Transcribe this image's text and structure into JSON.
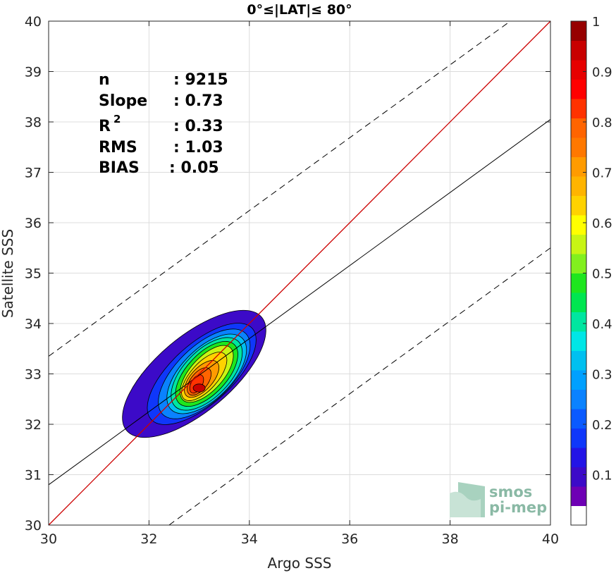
{
  "chart_data": {
    "type": "scatter",
    "title": "0°≤|LAT|≤ 80°",
    "xlabel": "Argo SSS",
    "ylabel": "Satellite SSS",
    "xlim": [
      30,
      40
    ],
    "ylim": [
      30,
      40
    ],
    "xticks": [
      "30",
      "32",
      "34",
      "36",
      "38",
      "40"
    ],
    "yticks": [
      "30",
      "31",
      "32",
      "33",
      "34",
      "35",
      "36",
      "37",
      "38",
      "39",
      "40"
    ],
    "grid": true,
    "stats": [
      {
        "label": "n",
        "value": ": 9215"
      },
      {
        "label": "Slope",
        "value": ": 0.73"
      },
      {
        "label": "R",
        "sup": "2",
        "value": ": 0.33"
      },
      {
        "label": "RMS",
        "value": ": 1.03"
      },
      {
        "label": "BIAS",
        "value": ": 0.05"
      }
    ],
    "identity_line": {
      "from": [
        30,
        30
      ],
      "to": [
        40,
        40
      ],
      "color": "#cc0000"
    },
    "regression_line": {
      "from": [
        30,
        30.8
      ],
      "to": [
        40,
        38.05
      ]
    },
    "dashed_lines": [
      {
        "from": [
          30,
          33.35
        ],
        "to": [
          39.2,
          40
        ]
      },
      {
        "from": [
          32.4,
          30
        ],
        "to": [
          40,
          35.5
        ]
      }
    ],
    "density_levels": [
      {
        "level": 0.05,
        "color": "#3c0ac8",
        "cx": 32.9,
        "cy": 33.0,
        "rx": 0.75,
        "ry": 1.75,
        "angle": 50
      },
      {
        "level": 0.15,
        "color": "#0f37fa",
        "cx": 33.05,
        "cy": 33.0,
        "rx": 0.6,
        "ry": 1.35,
        "angle": 48
      },
      {
        "level": 0.25,
        "color": "#0a82ff",
        "cx": 33.1,
        "cy": 33.0,
        "rx": 0.55,
        "ry": 1.15,
        "angle": 46
      },
      {
        "level": 0.35,
        "color": "#00c0f0",
        "cx": 33.15,
        "cy": 33.0,
        "rx": 0.5,
        "ry": 1.0,
        "angle": 45
      },
      {
        "level": 0.45,
        "color": "#00e6a0",
        "cx": 33.15,
        "cy": 33.0,
        "rx": 0.46,
        "ry": 0.9,
        "angle": 44
      },
      {
        "level": 0.55,
        "color": "#1ee61e",
        "cx": 33.15,
        "cy": 33.0,
        "rx": 0.4,
        "ry": 0.8,
        "angle": 43
      },
      {
        "level": 0.65,
        "color": "#c8f514",
        "cx": 33.15,
        "cy": 33.0,
        "rx": 0.33,
        "ry": 0.7,
        "angle": 42
      },
      {
        "level": 0.7,
        "color": "#ffd200",
        "cx": 33.1,
        "cy": 32.95,
        "rx": 0.27,
        "ry": 0.6,
        "angle": 42
      },
      {
        "level": 0.75,
        "color": "#ff9b00",
        "cx": 33.05,
        "cy": 32.9,
        "rx": 0.22,
        "ry": 0.45,
        "angle": 42
      },
      {
        "level": 0.8,
        "color": "#ff6400",
        "cx": 33.0,
        "cy": 32.85,
        "rx": 0.17,
        "ry": 0.32,
        "angle": 38
      },
      {
        "level": 0.85,
        "color": "#ff3200",
        "cx": 32.95,
        "cy": 32.8,
        "rx": 0.11,
        "ry": 0.2,
        "angle": 30
      },
      {
        "level": 0.95,
        "color": "#c80000",
        "cx": 33.0,
        "cy": 32.72,
        "rx": 0.12,
        "ry": 0.08,
        "angle": 0
      }
    ],
    "colorbar": {
      "range": [
        0,
        1
      ],
      "tick_labels": [
        "0.1",
        "0.2",
        "0.3",
        "0.4",
        "0.5",
        "0.6",
        "0.7",
        "0.8",
        "0.9",
        "1"
      ],
      "tick_values": [
        0.1,
        0.2,
        0.3,
        0.4,
        0.5,
        0.6,
        0.7,
        0.8,
        0.9,
        1.0
      ],
      "colors": [
        "#ffffff",
        "#6e00b4",
        "#3c0ac8",
        "#2314e6",
        "#0f37fa",
        "#0a5aff",
        "#0a82ff",
        "#00a0ff",
        "#00c0f0",
        "#00e6e6",
        "#00e6a0",
        "#00e650",
        "#1ee61e",
        "#82f01e",
        "#c8f514",
        "#ffff00",
        "#ffd200",
        "#ffb400",
        "#ff9b00",
        "#ff7800",
        "#ff6400",
        "#ff3200",
        "#ff0000",
        "#e60000",
        "#c80000",
        "#960000"
      ]
    }
  },
  "watermark": {
    "line1": "smos",
    "line2": "pi-mep"
  }
}
